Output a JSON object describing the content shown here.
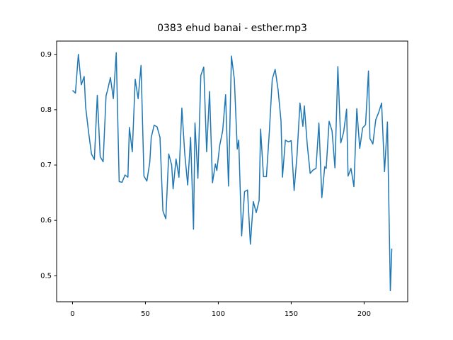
{
  "chart_data": {
    "type": "line",
    "title": "0383 ehud banai - esther.mp3",
    "x": [
      0,
      2,
      4,
      6,
      8,
      9,
      11,
      13,
      15,
      17,
      19,
      21,
      23,
      24,
      26,
      28,
      30,
      32,
      34,
      36,
      38,
      39,
      41,
      43,
      45,
      47,
      49,
      51,
      53,
      54,
      56,
      58,
      60,
      62,
      64,
      66,
      68,
      69,
      71,
      73,
      75,
      77,
      79,
      81,
      83,
      84,
      86,
      88,
      90,
      92,
      94,
      96,
      98,
      99,
      101,
      103,
      105,
      107,
      109,
      111,
      113,
      114,
      116,
      118,
      120,
      122,
      124,
      126,
      128,
      129,
      131,
      133,
      135,
      137,
      139,
      141,
      143,
      144,
      146,
      148,
      150,
      152,
      154,
      156,
      158,
      159,
      161,
      163,
      165,
      167,
      169,
      171,
      173,
      174,
      176,
      178,
      180,
      182,
      184,
      186,
      188,
      189,
      191,
      193,
      195,
      197,
      199,
      201,
      203,
      204,
      206,
      208,
      210,
      212,
      214,
      216,
      218,
      219
    ],
    "series": [
      {
        "color": "#1f77b4",
        "values": [
          0.835,
          0.83,
          0.9,
          0.845,
          0.86,
          0.805,
          0.76,
          0.72,
          0.71,
          0.826,
          0.715,
          0.706,
          0.825,
          0.835,
          0.858,
          0.82,
          0.903,
          0.67,
          0.669,
          0.682,
          0.678,
          0.768,
          0.724,
          0.855,
          0.82,
          0.88,
          0.68,
          0.671,
          0.705,
          0.75,
          0.772,
          0.769,
          0.75,
          0.617,
          0.603,
          0.72,
          0.7,
          0.657,
          0.711,
          0.678,
          0.803,
          0.72,
          0.664,
          0.75,
          0.584,
          0.776,
          0.676,
          0.862,
          0.877,
          0.724,
          0.833,
          0.668,
          0.702,
          0.69,
          0.736,
          0.762,
          0.827,
          0.662,
          0.897,
          0.855,
          0.729,
          0.745,
          0.572,
          0.652,
          0.655,
          0.557,
          0.634,
          0.614,
          0.636,
          0.765,
          0.679,
          0.679,
          0.76,
          0.855,
          0.873,
          0.836,
          0.78,
          0.678,
          0.745,
          0.742,
          0.744,
          0.654,
          0.718,
          0.812,
          0.77,
          0.807,
          0.737,
          0.685,
          0.691,
          0.694,
          0.776,
          0.641,
          0.697,
          0.694,
          0.779,
          0.762,
          0.695,
          0.878,
          0.74,
          0.76,
          0.801,
          0.68,
          0.694,
          0.661,
          0.802,
          0.73,
          0.767,
          0.773,
          0.87,
          0.748,
          0.738,
          0.782,
          0.795,
          0.812,
          0.688,
          0.778,
          0.473,
          0.549
        ]
      }
    ],
    "xlim": [
      -10.9,
      229.9
    ],
    "ylim": [
      0.453,
      0.924
    ],
    "xticks": [
      0,
      50,
      100,
      150,
      200
    ],
    "yticks": [
      0.5,
      0.6,
      0.7,
      0.8,
      0.9
    ]
  }
}
